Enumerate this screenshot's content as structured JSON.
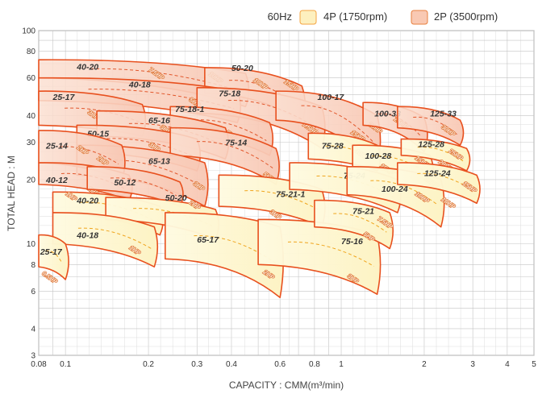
{
  "chart_data": {
    "type": "pump-selection-chart",
    "title": "",
    "xlabel": "CAPACITY : CMM(m³/min)",
    "ylabel": "TOTAL HEAD : M",
    "x_scale": "log",
    "y_scale": "log",
    "xlim": [
      0.08,
      5
    ],
    "ylim": [
      3,
      100
    ],
    "x_ticks": [
      {
        "v": 0.08,
        "t": "0.08"
      },
      {
        "v": 0.1,
        "t": "0.1"
      },
      {
        "v": 0.2,
        "t": "0.2"
      },
      {
        "v": 0.3,
        "t": "0.3"
      },
      {
        "v": 0.4,
        "t": "0.4"
      },
      {
        "v": 0.6,
        "t": "0.6"
      },
      {
        "v": 0.8,
        "t": "0.8"
      },
      {
        "v": 1,
        "t": "1"
      },
      {
        "v": 2,
        "t": "2"
      },
      {
        "v": 3,
        "t": "3"
      },
      {
        "v": 4,
        "t": "4"
      },
      {
        "v": 5,
        "t": "5"
      }
    ],
    "y_ticks": [
      {
        "v": 3,
        "t": "3"
      },
      {
        "v": 4,
        "t": "4"
      },
      {
        "v": 6,
        "t": "6"
      },
      {
        "v": 8,
        "t": "8"
      },
      {
        "v": 10,
        "t": "10"
      },
      {
        "v": 20,
        "t": "20"
      },
      {
        "v": 30,
        "t": "30"
      },
      {
        "v": 40,
        "t": "40"
      },
      {
        "v": 60,
        "t": "60"
      },
      {
        "v": 80,
        "t": "80"
      },
      {
        "v": 100,
        "t": "100"
      }
    ],
    "grid": true,
    "legend_position": "top-right",
    "legend": {
      "frequency": "60Hz",
      "items": [
        {
          "label": "4P (1750rpm)",
          "fill": "#fdf0bf",
          "stroke": "#f4a340"
        },
        {
          "label": "2P (3500rpm)",
          "fill": "#f9c9b3",
          "stroke": "#e8803f"
        }
      ]
    },
    "colors": {
      "2p_fill": "#f8c7b3",
      "4p_fill": "#fdf3c4",
      "boundary": "#e8501e",
      "2p_dash": "#e2572c",
      "4p_dash": "#f0a51d",
      "grid": "#c4c4c4"
    },
    "regions_2p": [
      {
        "label": "40-20",
        "qmin": 0.08,
        "qmax": 0.45,
        "htop": [
          73,
          63
        ],
        "hbot": [
          60,
          44
        ],
        "label_at": [
          0.11,
          68
        ],
        "hp": [
          {
            "t": "7.5HP",
            "q": 0.2,
            "h": 65
          },
          {
            "t": "10HP",
            "q": 0.33,
            "h": 62
          }
        ]
      },
      {
        "label": "50-20",
        "qmin": 0.32,
        "qmax": 0.72,
        "htop": [
          67,
          55
        ],
        "hbot": [
          51,
          37
        ],
        "label_at": [
          0.4,
          67
        ],
        "hp": [
          {
            "t": "10HP",
            "q": 0.48,
            "h": 58
          },
          {
            "t": "15HP",
            "q": 0.62,
            "h": 57
          }
        ]
      },
      {
        "label": "40-18",
        "qmin": 0.08,
        "qmax": 0.42,
        "htop": [
          60,
          52
        ],
        "hbot": [
          47,
          37
        ],
        "label_at": [
          0.17,
          56
        ],
        "hp": [
          {
            "t": "5HP",
            "q": 0.28,
            "h": 47
          }
        ]
      },
      {
        "label": "75-18",
        "qmin": 0.3,
        "qmax": 0.85,
        "htop": [
          54,
          44
        ],
        "hbot": [
          41,
          28
        ],
        "label_at": [
          0.36,
          51
        ],
        "hp": [
          {
            "t": "7.5HP",
            "q": 0.72,
            "h": 36
          }
        ]
      },
      {
        "label": "100-17",
        "qmin": 0.58,
        "qmax": 1.35,
        "htop": [
          52,
          40
        ],
        "hbot": [
          38,
          23
        ],
        "label_at": [
          0.82,
          49
        ],
        "hp": [
          {
            "t": "15HP",
            "q": 1.08,
            "h": 33
          },
          {
            "t": "20HP",
            "q": 1.25,
            "h": 36
          }
        ]
      },
      {
        "label": "25-17",
        "qmin": 0.08,
        "qmax": 0.19,
        "htop": [
          52,
          45
        ],
        "hbot": [
          36,
          32
        ],
        "label_at": [
          0.09,
          49
        ],
        "hp": [
          {
            "t": "3HP",
            "q": 0.12,
            "h": 41
          }
        ]
      },
      {
        "label": "75-18-1",
        "qmin": 0.24,
        "qmax": 0.55,
        "htop": [
          44,
          37
        ],
        "hbot": [
          33,
          26
        ],
        "label_at": [
          0.25,
          43
        ],
        "hp": [
          {
            "t": "5HP",
            "q": 0.38,
            "h": 33
          }
        ]
      },
      {
        "label": "65-16",
        "qmin": 0.13,
        "qmax": 0.38,
        "htop": [
          42,
          35
        ],
        "hbot": [
          32,
          25
        ],
        "label_at": [
          0.2,
          38
        ],
        "hp": [
          {
            "t": "3HP",
            "q": 0.22,
            "h": 35
          }
        ]
      },
      {
        "label": "100-33",
        "qmin": 1.2,
        "qmax": 2.0,
        "htop": [
          46,
          39
        ],
        "hbot": [
          36,
          27
        ],
        "label_at": [
          1.32,
          41
        ],
        "hp": [
          {
            "t": "25HP",
            "q": 1.55,
            "h": 38
          },
          {
            "t": "15HP",
            "q": 1.4,
            "h": 27
          }
        ]
      },
      {
        "label": "125-33",
        "qmin": 1.6,
        "qmax": 2.7,
        "htop": [
          44,
          38
        ],
        "hbot": [
          35,
          29
        ],
        "label_at": [
          2.1,
          41
        ],
        "hp": [
          {
            "t": "30HP",
            "q": 2.3,
            "h": 35
          }
        ]
      },
      {
        "label": "50-15",
        "qmin": 0.11,
        "qmax": 0.3,
        "htop": [
          36,
          31
        ],
        "hbot": [
          27,
          22
        ],
        "label_at": [
          0.12,
          33
        ],
        "hp": [
          {
            "t": "3HP",
            "q": 0.2,
            "h": 29
          }
        ]
      },
      {
        "label": "75-14",
        "qmin": 0.24,
        "qmax": 0.58,
        "htop": [
          35,
          28
        ],
        "hbot": [
          26,
          19
        ],
        "label_at": [
          0.38,
          30
        ],
        "hp": [
          {
            "t": "5HP",
            "q": 0.52,
            "h": 21
          }
        ]
      },
      {
        "label": "65-13",
        "qmin": 0.11,
        "qmax": 0.32,
        "htop": [
          29,
          24
        ],
        "hbot": [
          21,
          15
        ],
        "label_at": [
          0.2,
          24.5
        ],
        "hp": [
          {
            "t": "3HP",
            "q": 0.29,
            "h": 19
          }
        ]
      },
      {
        "label": "25-14",
        "qmin": 0.08,
        "qmax": 0.16,
        "htop": [
          34,
          29
        ],
        "hbot": [
          24,
          20
        ],
        "label_at": [
          0.085,
          29
        ],
        "hp": [
          {
            "t": "2HP",
            "q": 0.11,
            "h": 28
          },
          {
            "t": "2HP",
            "q": 0.13,
            "h": 25
          }
        ]
      },
      {
        "label": "40-12",
        "qmin": 0.08,
        "qmax": 0.17,
        "htop": [
          24,
          21
        ],
        "hbot": [
          19,
          16
        ],
        "label_at": [
          0.085,
          20
        ],
        "hp": [
          {
            "t": "1HP",
            "q": 0.12,
            "h": 18
          }
        ]
      },
      {
        "label": "50-12",
        "qmin": 0.12,
        "qmax": 0.26,
        "htop": [
          23,
          19.5
        ],
        "hbot": [
          18,
          15
        ],
        "label_at": [
          0.15,
          19.5
        ],
        "hp": []
      }
    ],
    "regions_4p": [
      {
        "label": "40-20",
        "qmin": 0.09,
        "qmax": 0.22,
        "htop": [
          17.5,
          15
        ],
        "hbot": [
          14,
          11
        ],
        "label_at": [
          0.11,
          16
        ],
        "hp": [
          {
            "t": "1HP",
            "q": 0.1,
            "h": 17
          }
        ]
      },
      {
        "label": "50-20",
        "qmin": 0.14,
        "qmax": 0.35,
        "htop": [
          16.5,
          14.5
        ],
        "hbot": [
          13,
          10.5
        ],
        "label_at": [
          0.23,
          16.5
        ],
        "hp": [
          {
            "t": "2HP",
            "q": 0.28,
            "h": 15.5
          }
        ]
      },
      {
        "label": "40-18",
        "qmin": 0.09,
        "qmax": 0.21,
        "htop": [
          14,
          12
        ],
        "hbot": [
          10,
          7.8
        ],
        "label_at": [
          0.11,
          11
        ],
        "hp": [
          {
            "t": "1HP",
            "q": 0.17,
            "h": 9.5
          }
        ]
      },
      {
        "label": "25-17",
        "qmin": 0.08,
        "qmax": 0.1,
        "htop": [
          11,
          10
        ],
        "hbot": [
          7.8,
          6.8
        ],
        "label_at": [
          0.081,
          9.2
        ],
        "hp": [
          {
            "t": "0.5HP",
            "q": 0.082,
            "h": 7.2
          }
        ]
      },
      {
        "label": "65-17",
        "qmin": 0.23,
        "qmax": 0.6,
        "htop": [
          14,
          12
        ],
        "hbot": [
          8.5,
          5.6
        ],
        "label_at": [
          0.3,
          10.5
        ],
        "hp": [
          {
            "t": "2HP",
            "q": 0.52,
            "h": 7.3
          }
        ]
      },
      {
        "label": "75-21-1",
        "qmin": 0.36,
        "qmax": 0.85,
        "htop": [
          21,
          18
        ],
        "hbot": [
          15,
          12
        ],
        "label_at": [
          0.58,
          17.2
        ],
        "hp": [
          {
            "t": "3HP",
            "q": 0.55,
            "h": 14
          }
        ]
      },
      {
        "label": "75-16",
        "qmin": 0.5,
        "qmax": 1.35,
        "htop": [
          13,
          11
        ],
        "hbot": [
          8,
          5.8
        ],
        "label_at": [
          1.0,
          10.3
        ],
        "hp": [
          {
            "t": "3HP",
            "q": 1.05,
            "h": 7
          }
        ]
      },
      {
        "label": "75-21",
        "qmin": 0.8,
        "qmax": 1.5,
        "htop": [
          16,
          14
        ],
        "hbot": [
          12,
          9.5
        ],
        "label_at": [
          1.1,
          14.3
        ],
        "hp": [
          {
            "t": "5HP",
            "q": 1.2,
            "h": 11
          }
        ]
      },
      {
        "label": "75-24",
        "qmin": 0.65,
        "qmax": 1.6,
        "htop": [
          24,
          20
        ],
        "hbot": [
          18,
          14
        ],
        "label_at": [
          1.02,
          21
        ],
        "hp": [
          {
            "t": "7.5HP",
            "q": 1.35,
            "h": 13
          }
        ]
      },
      {
        "label": "75-28",
        "qmin": 0.76,
        "qmax": 1.35,
        "htop": [
          33,
          29
        ],
        "hbot": [
          25,
          22
        ],
        "label_at": [
          0.85,
          29
        ],
        "hp": [
          {
            "t": "10HP",
            "q": 1.12,
            "h": 27
          }
        ]
      },
      {
        "label": "100-28",
        "qmin": 1.1,
        "qmax": 2.1,
        "htop": [
          29,
          26
        ],
        "hbot": [
          23,
          18.5
        ],
        "label_at": [
          1.22,
          26
        ],
        "hp": [
          {
            "t": "15HP",
            "q": 1.38,
            "h": 23
          }
        ]
      },
      {
        "label": "100-24",
        "qmin": 1.05,
        "qmax": 2.3,
        "htop": [
          23,
          20
        ],
        "hbot": [
          17,
          12
        ],
        "label_at": [
          1.4,
          18.2
        ],
        "hp": [
          {
            "t": "10HP",
            "q": 1.85,
            "h": 17
          },
          {
            "t": "15HP",
            "q": 2.0,
            "h": 20
          }
        ]
      },
      {
        "label": "125-28",
        "qmin": 1.65,
        "qmax": 2.85,
        "htop": [
          31,
          28
        ],
        "hbot": [
          26,
          22
        ],
        "label_at": [
          1.9,
          29.5
        ],
        "hp": [
          {
            "t": "15HP",
            "q": 1.85,
            "h": 25
          },
          {
            "t": "25HP",
            "q": 2.45,
            "h": 27
          },
          {
            "t": "20HP",
            "q": 2.25,
            "h": 24
          }
        ]
      },
      {
        "label": "125-24",
        "qmin": 1.6,
        "qmax": 3.1,
        "htop": [
          24,
          21
        ],
        "hbot": [
          19,
          15.5
        ],
        "label_at": [
          2.0,
          21.5
        ],
        "hp": [
          {
            "t": "10HP",
            "q": 2.3,
            "h": 16
          },
          {
            "t": "15HP",
            "q": 2.75,
            "h": 19
          }
        ]
      }
    ]
  }
}
